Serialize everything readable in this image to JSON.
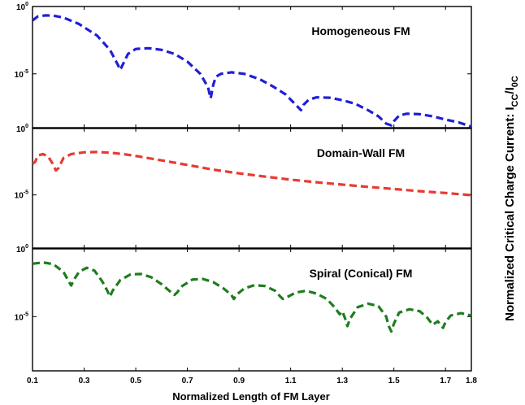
{
  "chart_data": [
    {
      "type": "line",
      "title": "Homogeneous FM",
      "y_scale": "log",
      "ylim": [
        1e-09,
        1
      ],
      "xlim": [
        0.1,
        1.8
      ],
      "y_ticks": [
        1,
        1e-05
      ],
      "color": "#1f1fd6",
      "line_style": "dashed",
      "x": [
        0.1,
        0.12,
        0.15,
        0.18,
        0.22,
        0.28,
        0.35,
        0.4,
        0.43,
        0.44,
        0.45,
        0.47,
        0.5,
        0.55,
        0.6,
        0.65,
        0.7,
        0.75,
        0.78,
        0.79,
        0.8,
        0.81,
        0.83,
        0.87,
        0.92,
        0.98,
        1.03,
        1.08,
        1.12,
        1.14,
        1.15,
        1.17,
        1.2,
        1.25,
        1.3,
        1.35,
        1.4,
        1.44,
        1.47,
        1.49,
        1.5,
        1.52,
        1.55,
        1.6,
        1.65,
        1.7,
        1.75,
        1.8
      ],
      "values": [
        0.09,
        0.18,
        0.22,
        0.21,
        0.15,
        0.05,
        0.007,
        0.0006,
        5e-05,
        2e-05,
        5e-05,
        0.0003,
        0.0007,
        0.0008,
        0.0006,
        0.0003,
        8e-05,
        1e-05,
        1e-06,
        1.5e-07,
        1.5e-06,
        6e-06,
        1e-05,
        1.3e-05,
        1e-05,
        4e-06,
        1.2e-06,
        3e-07,
        5e-08,
        2e-08,
        5e-08,
        1.2e-07,
        1.8e-07,
        1.7e-07,
        1.1e-07,
        6e-08,
        2e-08,
        7e-09,
        2e-09,
        1.5e-09,
        3e-09,
        8e-09,
        1.1e-08,
        1e-08,
        7e-09,
        4e-09,
        2.5e-09,
        1.2e-09
      ]
    },
    {
      "type": "line",
      "title": "Domain-Wall FM",
      "y_scale": "log",
      "ylim": [
        1e-09,
        1
      ],
      "xlim": [
        0.1,
        1.8
      ],
      "y_ticks": [
        1,
        1e-05
      ],
      "color": "#e83a32",
      "line_style": "dashed",
      "x": [
        0.1,
        0.11,
        0.12,
        0.14,
        0.16,
        0.18,
        0.19,
        0.2,
        0.22,
        0.25,
        0.3,
        0.35,
        0.4,
        0.45,
        0.5,
        0.6,
        0.7,
        0.8,
        0.9,
        1.0,
        1.1,
        1.2,
        1.3,
        1.4,
        1.5,
        1.6,
        1.7,
        1.8
      ],
      "values": [
        0.0022,
        0.003,
        0.009,
        0.012,
        0.008,
        0.002,
        0.0007,
        0.001,
        0.006,
        0.012,
        0.016,
        0.017,
        0.015,
        0.012,
        0.0085,
        0.004,
        0.0018,
        0.0008,
        0.00042,
        0.00024,
        0.00014,
        9e-05,
        6e-05,
        4e-05,
        2.8e-05,
        1.9e-05,
        1.4e-05,
        9.5e-06
      ]
    },
    {
      "type": "line",
      "title": "Spiral (Conical) FM",
      "y_scale": "log",
      "ylim": [
        1e-09,
        1
      ],
      "xlim": [
        0.1,
        1.8
      ],
      "y_ticks": [
        1,
        1e-05
      ],
      "color": "#1e7d1e",
      "line_style": "dashed",
      "x": [
        0.1,
        0.14,
        0.18,
        0.22,
        0.24,
        0.25,
        0.26,
        0.28,
        0.31,
        0.34,
        0.37,
        0.39,
        0.4,
        0.41,
        0.44,
        0.48,
        0.52,
        0.56,
        0.6,
        0.63,
        0.65,
        0.66,
        0.68,
        0.72,
        0.76,
        0.8,
        0.84,
        0.87,
        0.88,
        0.89,
        0.92,
        0.96,
        1.0,
        1.04,
        1.06,
        1.07,
        1.09,
        1.12,
        1.16,
        1.2,
        1.24,
        1.27,
        1.29,
        1.3,
        1.31,
        1.32,
        1.33,
        1.36,
        1.4,
        1.44,
        1.47,
        1.48,
        1.49,
        1.5,
        1.52,
        1.56,
        1.6,
        1.63,
        1.65,
        1.67,
        1.69,
        1.7,
        1.72,
        1.76,
        1.8
      ],
      "values": [
        0.08,
        0.1,
        0.075,
        0.02,
        0.004,
        0.002,
        0.005,
        0.02,
        0.04,
        0.025,
        0.004,
        0.0008,
        0.0003,
        0.0008,
        0.005,
        0.013,
        0.014,
        0.008,
        0.0025,
        0.0008,
        0.0004,
        0.0006,
        0.0018,
        0.0055,
        0.006,
        0.0035,
        0.0012,
        0.0004,
        0.0002,
        0.0004,
        0.0012,
        0.0021,
        0.0018,
        0.0008,
        0.0003,
        0.0002,
        0.0003,
        0.0006,
        0.0008,
        0.0005,
        0.0002,
        5e-05,
        1.5e-05,
        2.5e-05,
        8e-06,
        2e-06,
        7e-06,
        5e-05,
        9e-05,
        6e-05,
        1e-05,
        2e-06,
        8e-07,
        3e-06,
        2e-05,
        3.5e-05,
        2.5e-05,
        8e-06,
        2.5e-06,
        4.5e-06,
        1.5e-06,
        4e-06,
        1.2e-05,
        1.8e-05,
        1.2e-05
      ]
    }
  ],
  "x_ticks": [
    "0.1",
    "0.3",
    "0.5",
    "0.7",
    "0.9",
    "1.1",
    "1.3",
    "1.5",
    "1.7",
    "1.8"
  ],
  "xlabel": "Normalized Length of FM Layer",
  "ylabel": "Normalized Critical Charge Current: I",
  "ylabel_sub_1": "CC",
  "ylabel_sep": "/I",
  "ylabel_sub_2": "0C",
  "y_tick_base": "10",
  "y_tick_exp_top": "0",
  "y_tick_exp_mid": "-5"
}
